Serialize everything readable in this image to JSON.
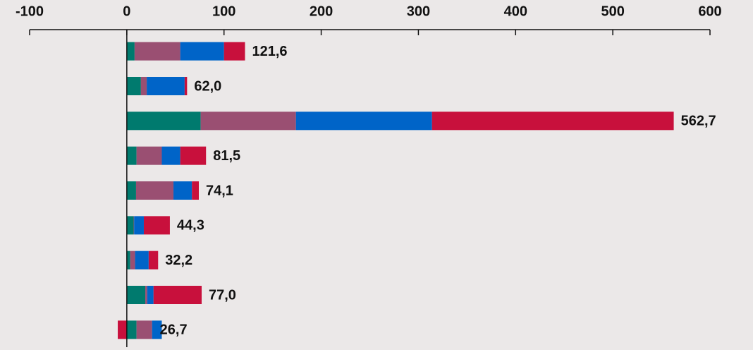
{
  "chart_data": {
    "type": "stacked-barh",
    "series": [
      {
        "color": "#007a6e",
        "values": [
          8,
          14.5,
          76,
          10,
          9.5,
          7,
          3.5,
          19,
          10
        ]
      },
      {
        "color": "#9a4f72",
        "values": [
          47,
          6,
          98,
          26,
          38.5,
          0.5,
          5,
          2,
          16
        ]
      },
      {
        "color": "#0064c8",
        "values": [
          45,
          39,
          140,
          19,
          19,
          10,
          14,
          6.5,
          10
        ]
      },
      {
        "color": "#c8103c",
        "values": [
          21.6,
          2.5,
          248.7,
          26.5,
          7.1,
          26.8,
          9.7,
          49.5,
          -9.3
        ]
      }
    ],
    "totals": [
      121.6,
      62.0,
      562.7,
      81.5,
      74.1,
      44.3,
      32.2,
      77.0,
      26.7
    ],
    "total_labels": [
      "121,6",
      "62,0",
      "562,7",
      "81,5",
      "74,1",
      "44,3",
      "32,2",
      "77,0",
      "26,7"
    ],
    "xlim": [
      -100,
      600
    ],
    "xticks": [
      -100,
      0,
      100,
      200,
      300,
      400,
      500,
      600
    ]
  }
}
